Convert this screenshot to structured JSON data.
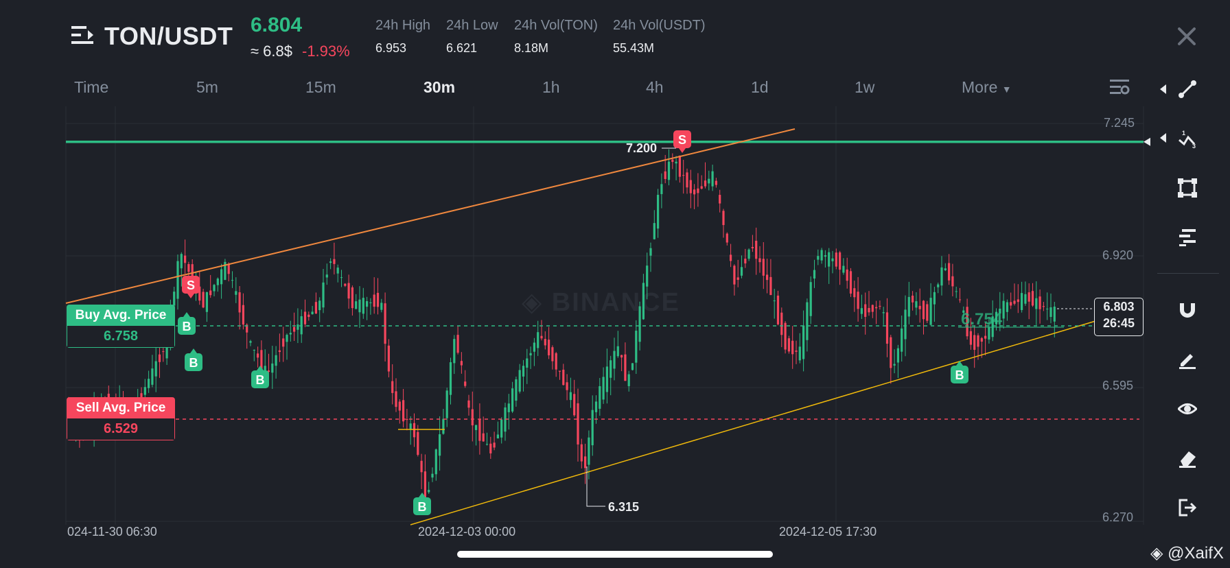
{
  "header": {
    "pair": "TON/USDT",
    "last_price": "6.804",
    "approx_usd": "≈ 6.8$",
    "change_pct": "-1.93%",
    "stats": [
      {
        "label": "24h High",
        "value": "6.953"
      },
      {
        "label": "24h Low",
        "value": "6.621"
      },
      {
        "label": "24h Vol(TON)",
        "value": "8.18M"
      },
      {
        "label": "24h Vol(USDT)",
        "value": "55.43M"
      }
    ]
  },
  "tabs": [
    "Time",
    "5m",
    "15m",
    "30m",
    "1h",
    "4h",
    "1d",
    "1w",
    "More"
  ],
  "active_tab": "30m",
  "colors": {
    "up": "#2ebd85",
    "down": "#f6465d",
    "resistance_line": "#f0883e",
    "support_line": "#f0b90b",
    "background": "#1e2128"
  },
  "chart_data": {
    "type": "candlestick",
    "ylim": [
      6.27,
      7.245
    ],
    "y_ticks": [
      "7.245",
      "6.920",
      "6.595",
      "6.270"
    ],
    "x_ticks": [
      "024-11-30 06:30",
      "2024-12-03 00:00",
      "2024-12-05 17:30"
    ],
    "horizontal_level": 7.2,
    "high_label": "7.200",
    "low_label": "6.315",
    "buy_avg": {
      "label": "Buy Avg. Price",
      "value": "6.758"
    },
    "sell_avg": {
      "label": "Sell Avg. Price",
      "value": "6.529"
    },
    "order_marker_value": "6.754",
    "current_price": "6.803",
    "countdown": "26:45",
    "trade_markers": [
      {
        "side": "S",
        "price": 6.84
      },
      {
        "side": "B",
        "price": 6.74
      },
      {
        "side": "B",
        "price": 6.66
      },
      {
        "side": "B",
        "price": 6.62
      },
      {
        "side": "B",
        "price": 6.3
      },
      {
        "side": "S",
        "price": 7.2
      },
      {
        "side": "B",
        "price": 6.64
      }
    ]
  },
  "watermark": "BINANCE",
  "credit": "@XaifX",
  "toolbar": [
    "line-tool-icon",
    "fib-tool-icon",
    "shape-tool-icon",
    "text-tool-icon",
    "magnet-icon",
    "pencil-icon",
    "eye-icon",
    "eraser-icon",
    "exit-icon"
  ]
}
